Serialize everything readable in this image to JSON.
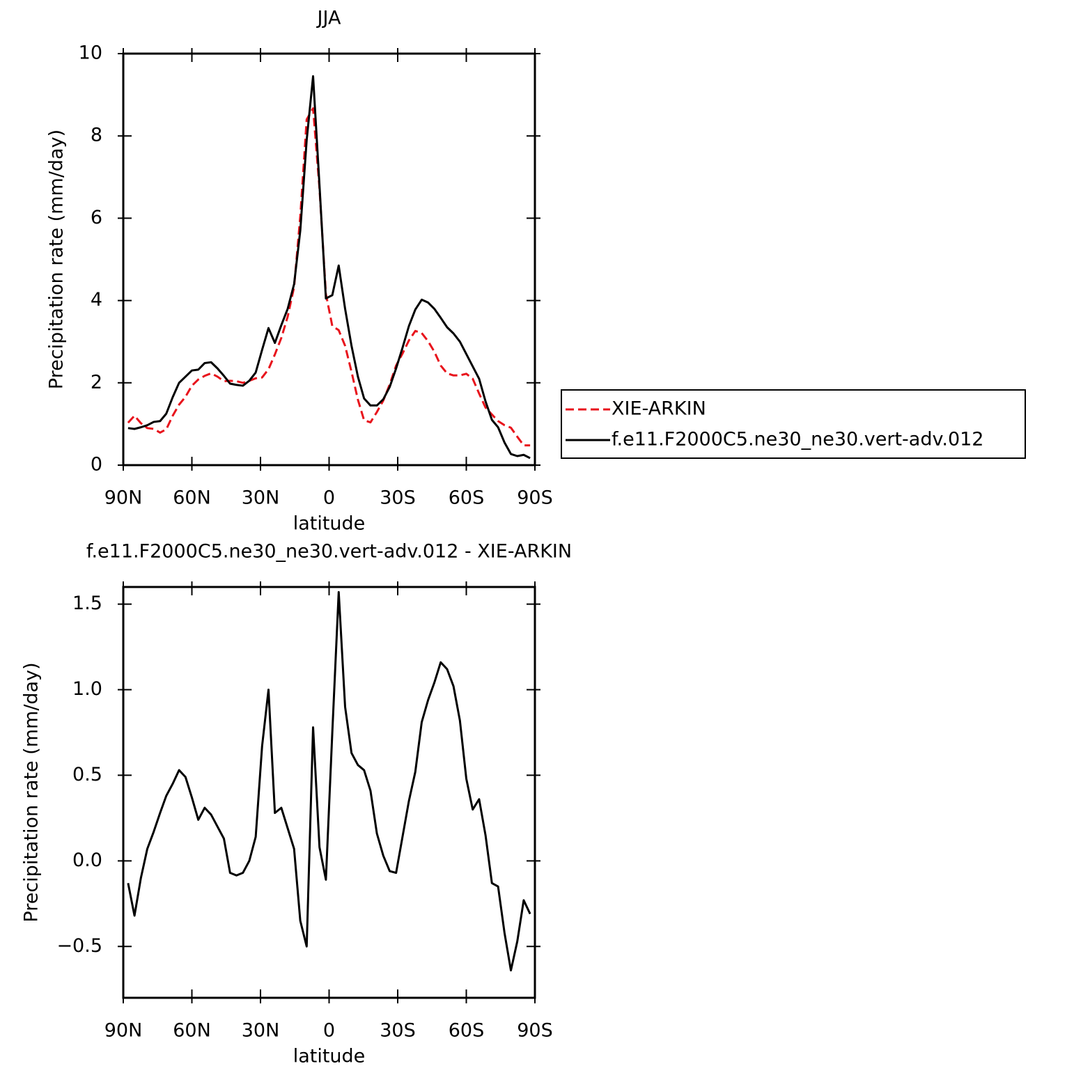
{
  "chart_data": [
    {
      "type": "line",
      "title": "JJA",
      "x_label": "latitude",
      "y_label": "Precipitation rate (mm/day)",
      "x": [
        87.9,
        85.1,
        82.3,
        79.5,
        76.7,
        73.9,
        71.2,
        68.4,
        65.6,
        62.8,
        60.0,
        57.2,
        54.4,
        51.6,
        48.8,
        46.0,
        43.3,
        40.5,
        37.7,
        34.9,
        32.1,
        29.3,
        26.5,
        23.7,
        20.9,
        18.1,
        15.3,
        12.6,
        9.8,
        7.0,
        4.2,
        1.4,
        -1.4,
        -4.2,
        -7.0,
        -9.8,
        -12.6,
        -15.3,
        -18.1,
        -20.9,
        -23.7,
        -26.5,
        -29.3,
        -32.1,
        -34.9,
        -37.7,
        -40.5,
        -43.3,
        -46.0,
        -48.8,
        -51.6,
        -54.4,
        -57.2,
        -60.0,
        -62.8,
        -65.6,
        -68.4,
        -71.2,
        -73.9,
        -76.7,
        -79.5,
        -82.3,
        -85.1,
        -87.9
      ],
      "series": [
        {
          "name": "XIE-ARKIN",
          "color": "#e8141c",
          "dashed": true,
          "values": [
            1.03,
            1.2,
            1.02,
            0.9,
            0.88,
            0.79,
            0.87,
            1.2,
            1.47,
            1.66,
            1.93,
            2.08,
            2.17,
            2.23,
            2.15,
            2.04,
            2.05,
            2.04,
            2.0,
            2.05,
            2.11,
            2.13,
            2.33,
            2.69,
            3.09,
            3.61,
            4.33,
            6.05,
            8.4,
            8.67,
            6.72,
            4.16,
            3.38,
            3.28,
            2.9,
            2.27,
            1.59,
            1.09,
            1.04,
            1.29,
            1.57,
            1.96,
            2.42,
            2.71,
            3.03,
            3.26,
            3.21,
            3.01,
            2.76,
            2.42,
            2.23,
            2.18,
            2.18,
            2.22,
            2.1,
            1.74,
            1.4,
            1.23,
            1.07,
            0.97,
            0.91,
            0.69,
            0.48,
            0.48
          ]
        },
        {
          "name": "f.e11.F2000C5.ne30_ne30.vert-adv.012",
          "color": "#000000",
          "dashed": false,
          "values": [
            0.9,
            0.88,
            0.92,
            0.97,
            1.05,
            1.07,
            1.25,
            1.65,
            2.0,
            2.15,
            2.3,
            2.32,
            2.48,
            2.5,
            2.35,
            2.17,
            1.98,
            1.95,
            1.93,
            2.05,
            2.25,
            2.8,
            3.33,
            2.97,
            3.4,
            3.8,
            4.4,
            5.7,
            7.9,
            9.45,
            6.8,
            4.05,
            4.13,
            4.85,
            3.8,
            2.9,
            2.15,
            1.62,
            1.45,
            1.45,
            1.6,
            1.9,
            2.35,
            2.85,
            3.38,
            3.78,
            4.02,
            3.95,
            3.8,
            3.58,
            3.35,
            3.2,
            3.0,
            2.7,
            2.4,
            2.1,
            1.55,
            1.1,
            0.92,
            0.55,
            0.27,
            0.22,
            0.25,
            0.17
          ]
        }
      ],
      "xlim": [
        90,
        -90
      ],
      "xticks": [
        {
          "value": 90,
          "label": "90N"
        },
        {
          "value": 60,
          "label": "60N"
        },
        {
          "value": 30,
          "label": "30N"
        },
        0,
        {
          "value": -30,
          "label": "30S"
        },
        {
          "value": -60,
          "label": "60S"
        },
        {
          "value": -90,
          "label": "90S"
        }
      ],
      "ylim": [
        0,
        10
      ],
      "yticks": [
        0,
        2,
        4,
        6,
        8,
        10
      ],
      "legend": "right"
    },
    {
      "type": "line",
      "title": "f.e11.F2000C5.ne30_ne30.vert-adv.012 - XIE-ARKIN",
      "x_label": "latitude",
      "y_label": "Precipitation rate (mm/day)",
      "x": [
        87.9,
        85.1,
        82.3,
        79.5,
        76.7,
        73.9,
        71.2,
        68.4,
        65.6,
        62.8,
        60.0,
        57.2,
        54.4,
        51.6,
        48.8,
        46.0,
        43.3,
        40.5,
        37.7,
        34.9,
        32.1,
        29.3,
        26.5,
        23.7,
        20.9,
        18.1,
        15.3,
        12.6,
        9.8,
        7.0,
        4.2,
        1.4,
        -1.4,
        -4.2,
        -7.0,
        -9.8,
        -12.6,
        -15.3,
        -18.1,
        -20.9,
        -23.7,
        -26.5,
        -29.3,
        -32.1,
        -34.9,
        -37.7,
        -40.5,
        -43.3,
        -46.0,
        -48.8,
        -51.6,
        -54.4,
        -57.2,
        -60.0,
        -62.8,
        -65.6,
        -68.4,
        -71.2,
        -73.9,
        -76.7,
        -79.5,
        -82.3,
        -85.1,
        -87.9
      ],
      "series": [
        {
          "color": "#000000",
          "dashed": false,
          "values": [
            -0.13,
            -0.32,
            -0.1,
            0.07,
            0.17,
            0.28,
            0.38,
            0.45,
            0.53,
            0.49,
            0.37,
            0.24,
            0.31,
            0.27,
            0.2,
            0.13,
            -0.07,
            -0.085,
            -0.07,
            0.0,
            0.14,
            0.67,
            1.0,
            0.28,
            0.31,
            0.19,
            0.07,
            -0.35,
            -0.5,
            0.78,
            0.08,
            -0.11,
            0.75,
            1.57,
            0.9,
            0.63,
            0.56,
            0.53,
            0.41,
            0.16,
            0.03,
            -0.06,
            -0.07,
            0.14,
            0.35,
            0.52,
            0.81,
            0.94,
            1.04,
            1.16,
            1.12,
            1.02,
            0.82,
            0.48,
            0.3,
            0.36,
            0.15,
            -0.13,
            -0.15,
            -0.42,
            -0.64,
            -0.47,
            -0.23,
            -0.31
          ]
        }
      ],
      "xlim": [
        90,
        -90
      ],
      "xticks": [
        {
          "value": 90,
          "label": "90N"
        },
        {
          "value": 60,
          "label": "60N"
        },
        {
          "value": 30,
          "label": "30N"
        },
        0,
        {
          "value": -30,
          "label": "30S"
        },
        {
          "value": -60,
          "label": "60S"
        },
        {
          "value": -90,
          "label": "90S"
        }
      ],
      "ylim": [
        -0.8,
        1.6
      ],
      "yticks": [
        {
          "value": -0.5,
          "label": "−0.5"
        },
        {
          "value": 0,
          "label": "0.0"
        },
        0.5,
        {
          "value": 1,
          "label": "1.0"
        },
        1.5
      ]
    }
  ]
}
